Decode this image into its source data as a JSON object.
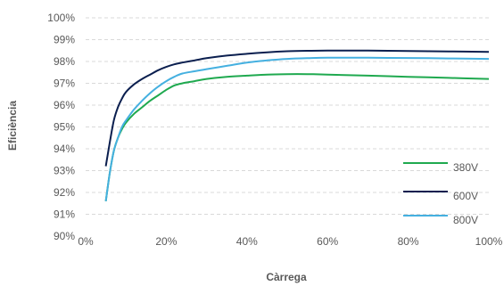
{
  "chart_data": {
    "type": "line",
    "xlabel": "Càrrega",
    "ylabel": "Eficiència",
    "xlim": [
      0,
      100
    ],
    "ylim": [
      90,
      100
    ],
    "x_ticks": [
      "0%",
      "20%",
      "40%",
      "60%",
      "80%",
      "100%"
    ],
    "y_ticks": [
      "90%",
      "91%",
      "92%",
      "93%",
      "94%",
      "95%",
      "96%",
      "97%",
      "98%",
      "99%",
      "100%"
    ],
    "grid": "horizontal dashed",
    "legend_position": "bottom-right",
    "series": [
      {
        "name": "380V",
        "color": "#1fa94f",
        "x": [
          5,
          6,
          7,
          8,
          9,
          10,
          12,
          14,
          16,
          18,
          20,
          22,
          24,
          27,
          30,
          35,
          40,
          45,
          50,
          55,
          60,
          70,
          80,
          90,
          100
        ],
        "y": [
          91.6,
          92.9,
          93.9,
          94.5,
          94.9,
          95.2,
          95.6,
          95.9,
          96.2,
          96.45,
          96.7,
          96.9,
          97.0,
          97.1,
          97.2,
          97.3,
          97.35,
          97.4,
          97.42,
          97.42,
          97.4,
          97.35,
          97.3,
          97.25,
          97.2
        ]
      },
      {
        "name": "600V",
        "color": "#0b1f4f",
        "x": [
          5,
          6,
          7,
          8,
          9,
          10,
          12,
          14,
          16,
          18,
          20,
          22,
          24,
          27,
          30,
          35,
          40,
          45,
          50,
          55,
          60,
          70,
          80,
          90,
          100
        ],
        "y": [
          93.2,
          94.3,
          95.3,
          95.9,
          96.3,
          96.6,
          96.95,
          97.2,
          97.4,
          97.6,
          97.75,
          97.87,
          97.95,
          98.05,
          98.15,
          98.27,
          98.35,
          98.42,
          98.47,
          98.49,
          98.5,
          98.5,
          98.48,
          98.46,
          98.44
        ]
      },
      {
        "name": "800V",
        "color": "#45b0e0",
        "x": [
          5,
          6,
          7,
          8,
          9,
          10,
          12,
          14,
          16,
          18,
          20,
          22,
          24,
          27,
          30,
          35,
          40,
          45,
          50,
          55,
          60,
          70,
          80,
          90,
          100
        ],
        "y": [
          91.6,
          92.9,
          93.9,
          94.5,
          95.0,
          95.3,
          95.8,
          96.2,
          96.55,
          96.85,
          97.1,
          97.3,
          97.45,
          97.55,
          97.65,
          97.8,
          97.95,
          98.05,
          98.12,
          98.15,
          98.17,
          98.17,
          98.16,
          98.14,
          98.12
        ]
      }
    ]
  }
}
